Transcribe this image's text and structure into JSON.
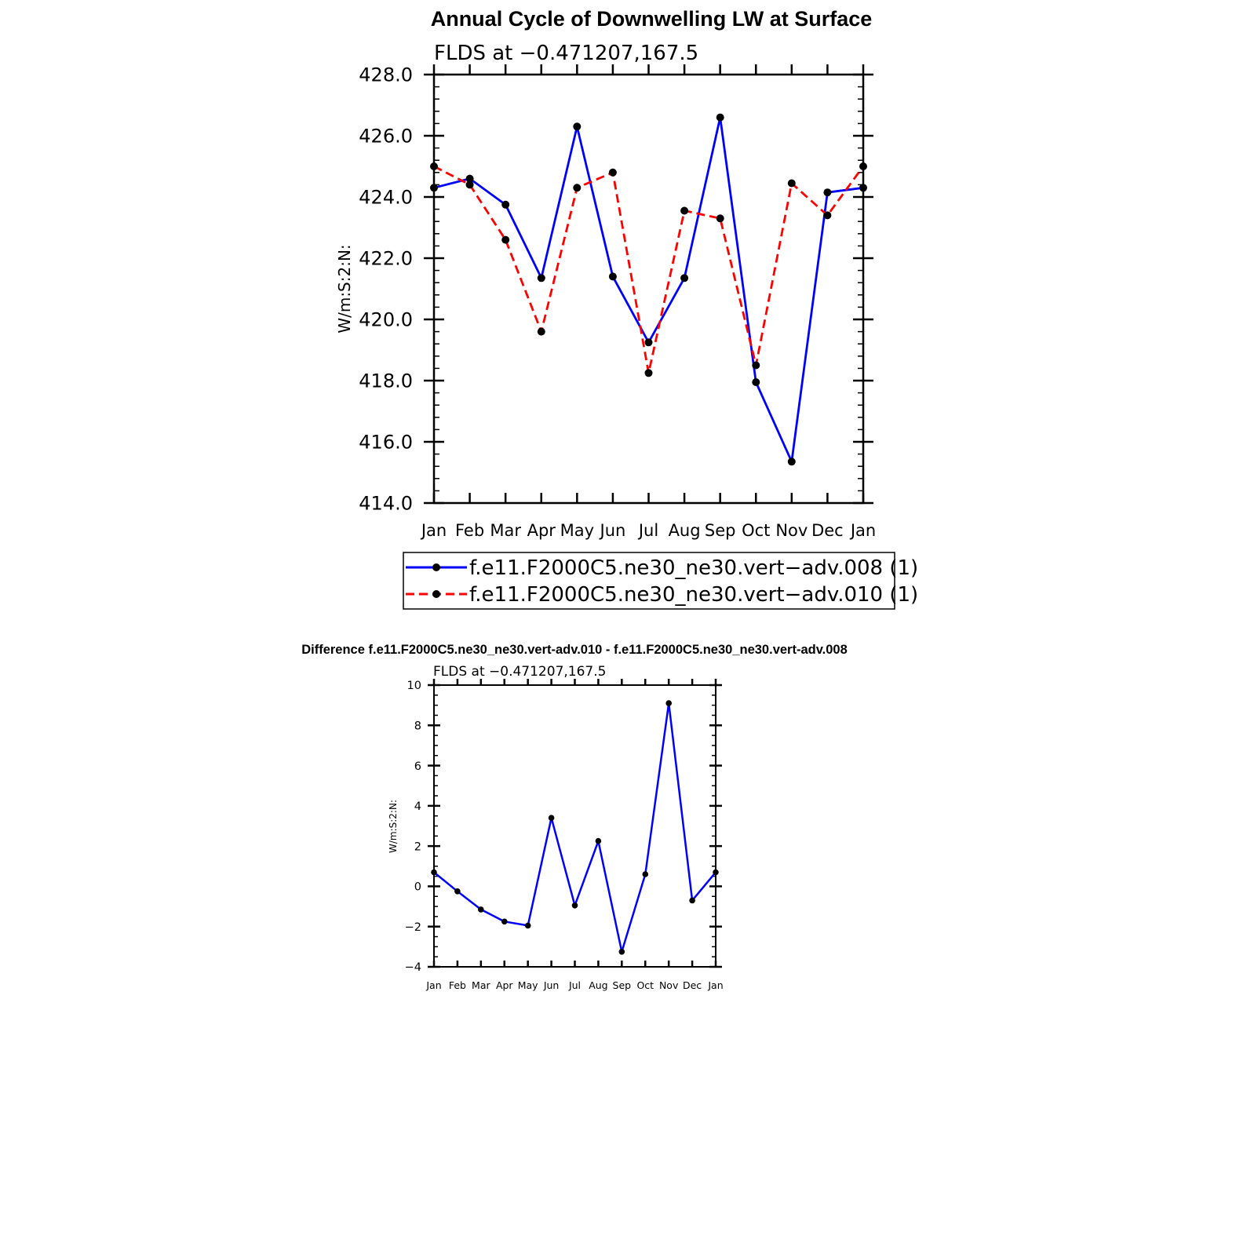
{
  "chart_data": [
    {
      "type": "line",
      "title": "Annual Cycle of Downwelling LW at Surface",
      "subtitle": "FLDS at −0.471207,167.5",
      "xlabel": "",
      "ylabel": "W/m:S:2:N:",
      "categories": [
        "Jan",
        "Feb",
        "Mar",
        "Apr",
        "May",
        "Jun",
        "Jul",
        "Aug",
        "Sep",
        "Oct",
        "Nov",
        "Dec",
        "Jan"
      ],
      "ylim": [
        414.0,
        428.0
      ],
      "ytick_labels": [
        "414.0",
        "416.0",
        "418.0",
        "420.0",
        "422.0",
        "424.0",
        "426.0",
        "428.0"
      ],
      "grid": false,
      "legend_position": "bottom",
      "series": [
        {
          "name": "f.e11.F2000C5.ne30_ne30.vert−adv.008 (1)",
          "color": "#0000ff",
          "line_style": "solid",
          "marker": "circle",
          "values": [
            424.3,
            424.6,
            423.75,
            421.35,
            426.3,
            421.4,
            419.25,
            421.35,
            426.6,
            417.95,
            415.35,
            424.15,
            424.3
          ]
        },
        {
          "name": "f.e11.F2000C5.ne30_ne30.vert−adv.010 (1)",
          "color": "#ff0000",
          "line_style": "dashed",
          "marker": "circle",
          "values": [
            425.0,
            424.4,
            422.6,
            419.6,
            424.3,
            424.8,
            418.25,
            423.55,
            423.3,
            418.5,
            424.45,
            423.4,
            425.0
          ]
        }
      ]
    },
    {
      "type": "line",
      "title": "Difference f.e11.F2000C5.ne30_ne30.vert-adv.010 - f.e11.F2000C5.ne30_ne30.vert-adv.008",
      "subtitle": "FLDS at −0.471207,167.5",
      "xlabel": "",
      "ylabel": "W/m:S:2:N:",
      "categories": [
        "Jan",
        "Feb",
        "Mar",
        "Apr",
        "May",
        "Jun",
        "Jul",
        "Aug",
        "Sep",
        "Oct",
        "Nov",
        "Dec",
        "Jan"
      ],
      "ylim": [
        -4,
        10
      ],
      "ytick_labels": [
        "−4",
        "−2",
        "0",
        "2",
        "4",
        "6",
        "8",
        "10"
      ],
      "grid": false,
      "series": [
        {
          "color": "#0000ff",
          "line_style": "solid",
          "marker": "circle",
          "values": [
            0.7,
            -0.25,
            -1.15,
            -1.75,
            -1.95,
            3.4,
            -0.95,
            2.25,
            -3.25,
            0.6,
            9.1,
            -0.7,
            0.7
          ]
        }
      ]
    }
  ]
}
